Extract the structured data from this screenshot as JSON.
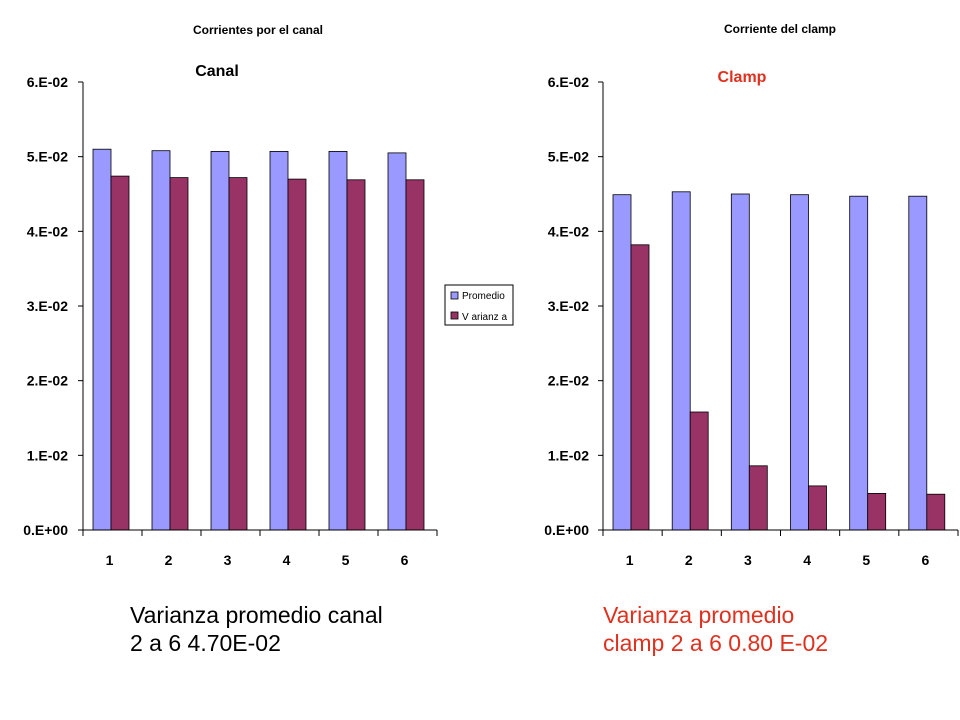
{
  "chart_data": [
    {
      "type": "bar",
      "title": "Corrientes por el canal",
      "subtitle": "Canal",
      "categories": [
        "1",
        "2",
        "3",
        "4",
        "5",
        "6"
      ],
      "series": [
        {
          "name": "Promedio",
          "values": [
            0.051,
            0.0508,
            0.0507,
            0.0507,
            0.0507,
            0.0505
          ]
        },
        {
          "name": "Varianza",
          "values": [
            0.0474,
            0.0472,
            0.0472,
            0.047,
            0.0469,
            0.0469
          ]
        }
      ],
      "yticks": [
        "0.E+00",
        "1.E-02",
        "2.E-02",
        "3.E-02",
        "4.E-02",
        "5.E-02",
        "6.E-02"
      ],
      "ylim": [
        0,
        0.06
      ],
      "legend": "right",
      "grid": false
    },
    {
      "type": "bar",
      "title": "Corriente del clamp",
      "subtitle": "Clamp",
      "categories": [
        "1",
        "2",
        "3",
        "4",
        "5",
        "6"
      ],
      "series": [
        {
          "name": "Promedio",
          "values": [
            0.0449,
            0.0453,
            0.045,
            0.0449,
            0.0447,
            0.0447
          ]
        },
        {
          "name": "Varianza",
          "values": [
            0.0382,
            0.0158,
            0.0086,
            0.0059,
            0.0049,
            0.0048
          ]
        }
      ],
      "yticks": [
        "0.E+00",
        "1.E-02",
        "2.E-02",
        "3.E-02",
        "4.E-02",
        "5.E-02",
        "6.E-02"
      ],
      "ylim": [
        0,
        0.06
      ],
      "grid": false
    }
  ],
  "legend": {
    "promedio": "Promedio",
    "varianza": "V arianz a"
  },
  "captions": {
    "canal_line1": "Varianza promedio canal",
    "canal_line2": "2 a 6  4.70E-02",
    "clamp_line1": "Varianza promedio",
    "clamp_line2": "clamp 2 a 6  0.80 E-02"
  },
  "colors": {
    "promedio": "#9999ff",
    "varianza": "#993366",
    "clamp_accent": "#e0301e",
    "text": "#000000"
  }
}
